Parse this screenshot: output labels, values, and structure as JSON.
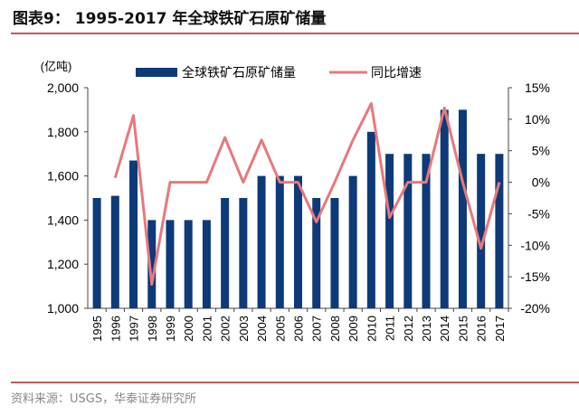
{
  "title": "图表9：  1995-2017 年全球铁矿石原矿储量",
  "source": "资料来源：USGS，华泰证券研究所",
  "colors": {
    "bar": "#0d3a78",
    "line": "#e8787c",
    "rule": "#c9585e"
  },
  "chart_data": {
    "type": "bar+line",
    "title": "1995-2017 年全球铁矿石原矿储量",
    "ylabel": "(亿吨)",
    "categories": [
      "1995",
      "1996",
      "1997",
      "1998",
      "1999",
      "2000",
      "2001",
      "2002",
      "2003",
      "2004",
      "2005",
      "2006",
      "2007",
      "2008",
      "2009",
      "2010",
      "2011",
      "2012",
      "2013",
      "2014",
      "2015",
      "2016",
      "2017"
    ],
    "series": [
      {
        "name": "全球铁矿石原矿储量",
        "type": "bar",
        "axis": "left",
        "values": [
          1500,
          1510,
          1670,
          1400,
          1400,
          1400,
          1400,
          1500,
          1500,
          1600,
          1600,
          1600,
          1500,
          1500,
          1600,
          1800,
          1700,
          1700,
          1700,
          1900,
          1900,
          1700,
          1700
        ]
      },
      {
        "name": "同比增速",
        "type": "line",
        "axis": "right",
        "values": [
          null,
          0.7,
          10.6,
          -16.2,
          0,
          0,
          0,
          7.1,
          0,
          6.7,
          0,
          0,
          -6.3,
          0,
          6.7,
          12.5,
          -5.6,
          0,
          0,
          11.8,
          0,
          -10.5,
          0
        ]
      }
    ],
    "left_axis": {
      "range": [
        1000,
        2000
      ],
      "ticks": [
        "1,000",
        "1,200",
        "1,400",
        "1,600",
        "1,800",
        "2,000"
      ]
    },
    "right_axis": {
      "range": [
        -20,
        15
      ],
      "ticks": [
        "-20%",
        "-15%",
        "-10%",
        "-5%",
        "0%",
        "5%",
        "10%",
        "15%"
      ]
    },
    "legend": "top-center",
    "grid": false
  }
}
